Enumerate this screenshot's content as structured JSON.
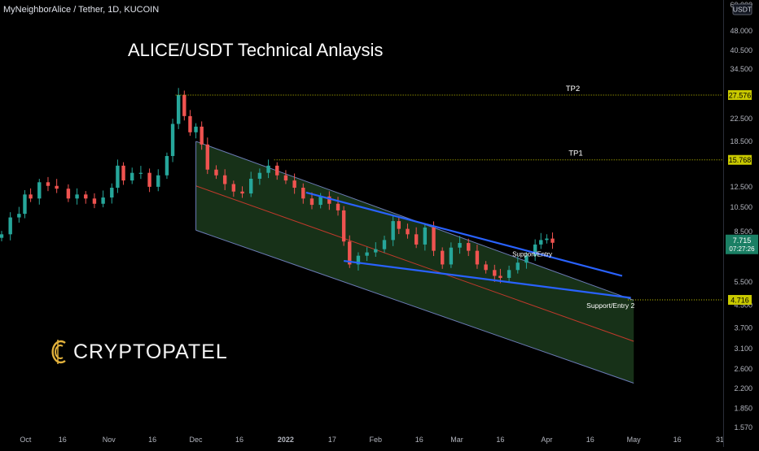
{
  "header": {
    "symbol_title": "MyNeighborAlice / Tether, 1D, KUCOIN"
  },
  "headline": "ALICE/USDT Technical Anlaysis",
  "logo": {
    "text": "CRYPTOPATEL",
    "accent_color": "#e3b23c"
  },
  "currency_badge": "USDT",
  "colors": {
    "background": "#000000",
    "up": "#26a69a",
    "down": "#ef5350",
    "trendline": "#2962ff",
    "channel_fill": "#1b3a1c",
    "midline": "#c0392b",
    "level_line": "#c9c900"
  },
  "chart_data": {
    "type": "candlestick",
    "symbol": "MyNeighborAlice / Tether",
    "interval": "1D",
    "exchange": "KUCOIN",
    "y_scale": "log",
    "ylim": [
      1.57,
      60.0
    ],
    "y_ticks": [
      "60.000",
      "48.000",
      "40.500",
      "34.500",
      "27.576",
      "22.500",
      "18.500",
      "15.768",
      "12.500",
      "10.500",
      "8.500",
      "7.715",
      "5.500",
      "4.716",
      "4.500",
      "3.700",
      "3.100",
      "2.600",
      "2.200",
      "1.850",
      "1.570"
    ],
    "x_tick_labels": [
      "Oct",
      "16",
      "Nov",
      "16",
      "Dec",
      "16",
      "2022",
      "17",
      "Feb",
      "16",
      "Mar",
      "16",
      "Apr",
      "16",
      "May",
      "16",
      "31"
    ],
    "x_tick_dates": [
      "2021-10-01",
      "2021-10-16",
      "2021-11-01",
      "2021-11-16",
      "2021-12-01",
      "2021-12-16",
      "2022-01-01",
      "2022-01-17",
      "2022-02-01",
      "2022-02-16",
      "2022-03-01",
      "2022-03-16",
      "2022-04-01",
      "2022-04-16",
      "2022-05-01",
      "2022-05-16",
      "2022-05-31"
    ],
    "closes": [
      {
        "date": "2021-09-25",
        "close": 8.3
      },
      {
        "date": "2021-09-28",
        "close": 9.6
      },
      {
        "date": "2021-10-01",
        "close": 9.9
      },
      {
        "date": "2021-10-03",
        "close": 11.7
      },
      {
        "date": "2021-10-05",
        "close": 11.3
      },
      {
        "date": "2021-10-08",
        "close": 13.0
      },
      {
        "date": "2021-10-11",
        "close": 12.6
      },
      {
        "date": "2021-10-14",
        "close": 12.3
      },
      {
        "date": "2021-10-18",
        "close": 11.3
      },
      {
        "date": "2021-10-21",
        "close": 11.7
      },
      {
        "date": "2021-10-24",
        "close": 11.3
      },
      {
        "date": "2021-10-27",
        "close": 10.8
      },
      {
        "date": "2021-10-30",
        "close": 11.4
      },
      {
        "date": "2021-11-02",
        "close": 12.4
      },
      {
        "date": "2021-11-04",
        "close": 15.0
      },
      {
        "date": "2021-11-06",
        "close": 13.2
      },
      {
        "date": "2021-11-09",
        "close": 14.1
      },
      {
        "date": "2021-11-12",
        "close": 14.1
      },
      {
        "date": "2021-11-15",
        "close": 12.5
      },
      {
        "date": "2021-11-18",
        "close": 13.8
      },
      {
        "date": "2021-11-21",
        "close": 16.3
      },
      {
        "date": "2021-11-23",
        "close": 21.5
      },
      {
        "date": "2021-11-25",
        "close": 27.6
      },
      {
        "date": "2021-11-27",
        "close": 23.0
      },
      {
        "date": "2021-11-29",
        "close": 20.0
      },
      {
        "date": "2021-12-01",
        "close": 21.0
      },
      {
        "date": "2021-12-03",
        "close": 18.0
      },
      {
        "date": "2021-12-05",
        "close": 14.5
      },
      {
        "date": "2021-12-08",
        "close": 13.8
      },
      {
        "date": "2021-12-11",
        "close": 12.8
      },
      {
        "date": "2021-12-14",
        "close": 12.0
      },
      {
        "date": "2021-12-17",
        "close": 11.8
      },
      {
        "date": "2021-12-20",
        "close": 13.4
      },
      {
        "date": "2021-12-23",
        "close": 14.1
      },
      {
        "date": "2021-12-26",
        "close": 15.0
      },
      {
        "date": "2021-12-29",
        "close": 13.8
      },
      {
        "date": "2022-01-01",
        "close": 13.2
      },
      {
        "date": "2022-01-04",
        "close": 12.4
      },
      {
        "date": "2022-01-07",
        "close": 11.3
      },
      {
        "date": "2022-01-10",
        "close": 10.7
      },
      {
        "date": "2022-01-13",
        "close": 11.5
      },
      {
        "date": "2022-01-16",
        "close": 10.8
      },
      {
        "date": "2022-01-19",
        "close": 10.2
      },
      {
        "date": "2022-01-21",
        "close": 7.8
      },
      {
        "date": "2022-01-23",
        "close": 6.4
      },
      {
        "date": "2022-01-26",
        "close": 6.9
      },
      {
        "date": "2022-01-29",
        "close": 7.1
      },
      {
        "date": "2022-02-01",
        "close": 7.3
      },
      {
        "date": "2022-02-04",
        "close": 7.9
      },
      {
        "date": "2022-02-07",
        "close": 9.3
      },
      {
        "date": "2022-02-09",
        "close": 8.7
      },
      {
        "date": "2022-02-12",
        "close": 8.3
      },
      {
        "date": "2022-02-15",
        "close": 7.6
      },
      {
        "date": "2022-02-18",
        "close": 8.8
      },
      {
        "date": "2022-02-21",
        "close": 7.2
      },
      {
        "date": "2022-02-24",
        "close": 6.4
      },
      {
        "date": "2022-02-27",
        "close": 7.4
      },
      {
        "date": "2022-03-02",
        "close": 7.7
      },
      {
        "date": "2022-03-05",
        "close": 7.2
      },
      {
        "date": "2022-03-08",
        "close": 6.4
      },
      {
        "date": "2022-03-11",
        "close": 6.1
      },
      {
        "date": "2022-03-14",
        "close": 5.8
      },
      {
        "date": "2022-03-16",
        "close": 5.7
      },
      {
        "date": "2022-03-19",
        "close": 6.1
      },
      {
        "date": "2022-03-22",
        "close": 6.5
      },
      {
        "date": "2022-03-25",
        "close": 6.9
      },
      {
        "date": "2022-03-28",
        "close": 7.6
      },
      {
        "date": "2022-03-30",
        "close": 7.9
      },
      {
        "date": "2022-04-01",
        "close": 8.0
      },
      {
        "date": "2022-04-03",
        "close": 7.715
      }
    ],
    "current_price": {
      "value": "7.715",
      "countdown": "07:27:26"
    },
    "levels": [
      {
        "label": "TP2",
        "value": 27.576,
        "tag": "27.576"
      },
      {
        "label": "TP1",
        "value": 15.768,
        "tag": "15.768"
      },
      {
        "label": "Support/Entry 2",
        "value": 4.716,
        "tag": "4.716"
      }
    ],
    "annotations": [
      {
        "text": "Support/Entry",
        "date": "2022-03-27",
        "value": 6.85
      }
    ],
    "channel": {
      "upper": [
        {
          "date": "2021-12-01",
          "value": 18.5
        },
        {
          "date": "2022-05-01",
          "value": 4.7
        }
      ],
      "lower": [
        {
          "date": "2021-12-01",
          "value": 8.6
        },
        {
          "date": "2022-05-01",
          "value": 2.3
        }
      ],
      "mid": [
        {
          "date": "2021-12-01",
          "value": 12.6
        },
        {
          "date": "2022-05-01",
          "value": 3.3
        }
      ]
    },
    "trendlines": [
      {
        "from": {
          "date": "2022-01-08",
          "value": 11.9
        },
        "to": {
          "date": "2022-04-27",
          "value": 5.8
        }
      },
      {
        "from": {
          "date": "2022-01-21",
          "value": 6.6
        },
        "to": {
          "date": "2022-04-30",
          "value": 4.8
        }
      }
    ]
  }
}
